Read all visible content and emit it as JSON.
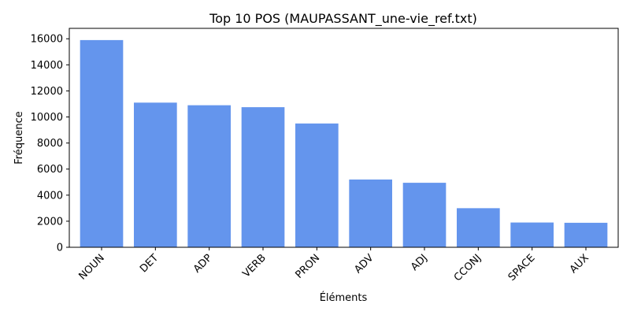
{
  "chart_data": {
    "type": "bar",
    "title": "Top 10 POS (MAUPASSANT_une-vie_ref.txt)",
    "xlabel": "Éléments",
    "ylabel": "Fréquence",
    "categories": [
      "NOUN",
      "DET",
      "ADP",
      "VERB",
      "PRON",
      "ADV",
      "ADJ",
      "CCONJ",
      "SPACE",
      "AUX"
    ],
    "values": [
      15900,
      11100,
      10900,
      10750,
      9500,
      5200,
      4950,
      3000,
      1900,
      1880
    ],
    "ylim": [
      0,
      16800
    ],
    "yticks": [
      0,
      2000,
      4000,
      6000,
      8000,
      10000,
      12000,
      14000,
      16000
    ],
    "bar_color": "#6495ED",
    "grid": false,
    "legend": "none",
    "xtick_rotation": 45
  }
}
